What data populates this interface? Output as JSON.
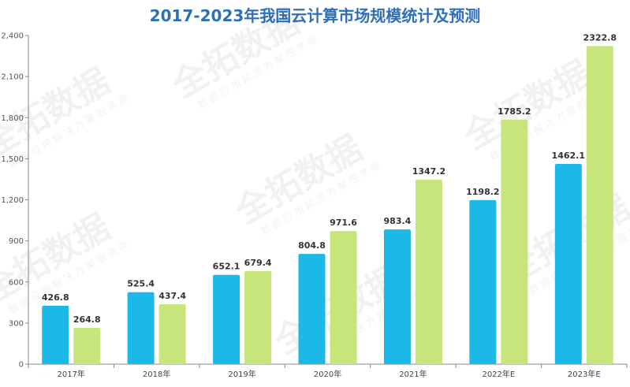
{
  "chart_data": {
    "type": "bar",
    "title": "2017-2023年我国云计算市场规模统计及预测",
    "categories": [
      "2017年",
      "2018年",
      "2019年",
      "2020年",
      "2021年",
      "2022年E",
      "2023年E"
    ],
    "series": [
      {
        "color": "#1bb8e8",
        "values": [
          426.8,
          525.4,
          652.1,
          804.8,
          983.4,
          1198.2,
          1462.1
        ]
      },
      {
        "color": "#c6e57a",
        "values": [
          264.8,
          437.4,
          679.4,
          971.6,
          1347.2,
          1785.2,
          2322.8
        ]
      }
    ],
    "ylim": [
      0,
      2400
    ],
    "yticks": [
      "0",
      "300",
      "600",
      "900",
      "1,200",
      "1,500",
      "1,800",
      "2,100",
      "2,400"
    ],
    "grid": false
  },
  "watermark": {
    "brand": "全拓数据",
    "tagline": "数据应用解决方案服务商"
  }
}
